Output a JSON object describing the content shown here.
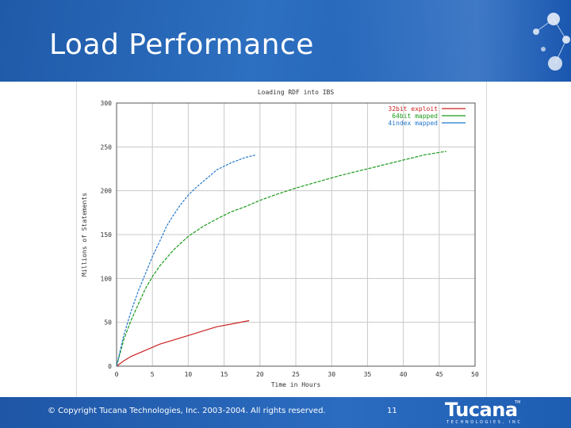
{
  "slide": {
    "title": "Load Performance",
    "copyright": "© Copyright Tucana Technologies, Inc. 2003-2004. All rights reserved.",
    "page_number": "11",
    "logo_text": "Tucana",
    "logo_subtext": "TECHNOLOGIES, INC",
    "logo_tm": "TM"
  },
  "colors": {
    "header_blue": "#2d6fc0",
    "footer_blue": "#2b6cc0",
    "series_red": "#cc2222",
    "series_green": "#1a9a1a",
    "series_blue": "#2277cc",
    "grid": "#c8c8c8"
  },
  "chart_data": {
    "type": "line",
    "title": "Loading RDF into IBS",
    "xlabel": "Time in Hours",
    "ylabel": "Millions of Statements",
    "xlim": [
      0,
      50
    ],
    "ylim": [
      0,
      300
    ],
    "xticks": [
      "0",
      "5",
      "10",
      "15",
      "20",
      "25",
      "30",
      "35",
      "40",
      "45",
      "50"
    ],
    "yticks": [
      "0",
      "50",
      "100",
      "150",
      "200",
      "250",
      "300"
    ],
    "grid": true,
    "legend_position": "top-right",
    "series": [
      {
        "name": "32bit exploit",
        "color": "#cc2222",
        "x": [
          0,
          1,
          2,
          4,
          6,
          8,
          10,
          12,
          14,
          16,
          18.5
        ],
        "y": [
          0,
          6,
          11,
          18,
          25,
          30,
          35,
          40,
          45,
          48,
          52
        ]
      },
      {
        "name": "64bit mapped",
        "color": "#1a9a1a",
        "x": [
          0,
          1,
          2,
          3,
          4,
          5,
          6,
          8,
          10,
          12,
          14,
          16,
          18,
          20,
          22,
          25,
          28,
          31,
          34,
          37,
          40,
          43,
          46
        ],
        "y": [
          0,
          30,
          52,
          70,
          88,
          102,
          114,
          133,
          148,
          159,
          168,
          176,
          182,
          189,
          195,
          203,
          210,
          217,
          223,
          229,
          235,
          241,
          245
        ]
      },
      {
        "name": "4index mapped",
        "color": "#2277cc",
        "x": [
          0,
          1,
          2,
          3,
          4,
          5,
          6,
          7,
          8,
          9,
          10,
          11,
          12,
          14,
          16,
          18,
          19.5
        ],
        "y": [
          0,
          35,
          62,
          85,
          105,
          125,
          142,
          160,
          173,
          185,
          195,
          203,
          210,
          224,
          232,
          238,
          241
        ]
      }
    ]
  }
}
